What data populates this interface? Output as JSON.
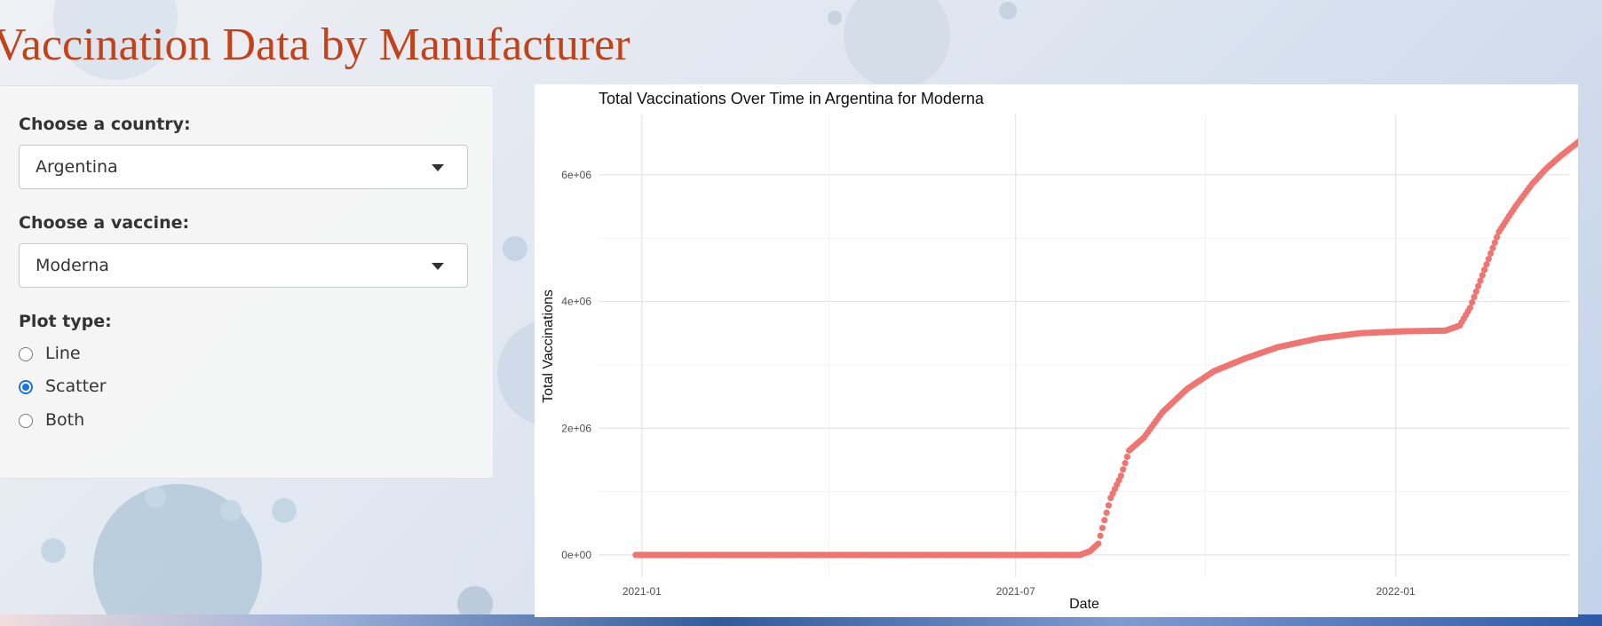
{
  "page": {
    "title": "Vaccination Data by Manufacturer"
  },
  "sidebar": {
    "country_label": "Choose a country:",
    "country_value": "Argentina",
    "vaccine_label": "Choose a vaccine:",
    "vaccine_value": "Moderna",
    "plot_type_label": "Plot type:",
    "plot_type_options": [
      {
        "label": "Line",
        "checked": false
      },
      {
        "label": "Scatter",
        "checked": true
      },
      {
        "label": "Both",
        "checked": false
      }
    ]
  },
  "colors": {
    "title": "#c2431a",
    "points": "#f07470",
    "radio_accent": "#1a73e8"
  },
  "chart_data": {
    "type": "scatter",
    "title": "Total Vaccinations Over Time in Argentina for Moderna",
    "xlabel": "Date",
    "ylabel": "Total Vaccinations",
    "xlim": [
      "2020-12-11",
      "2022-03-26"
    ],
    "ylim": [
      -350000,
      6950000
    ],
    "x_ticks": [
      "2021-01",
      "2021-07",
      "2022-01"
    ],
    "y_ticks": [
      {
        "value": 0,
        "label": "0e+00"
      },
      {
        "value": 2000000,
        "label": "2e+06"
      },
      {
        "value": 4000000,
        "label": "4e+06"
      },
      {
        "value": 6000000,
        "label": "6e+06"
      }
    ],
    "grid": true,
    "series_keypoints": [
      {
        "date": "2020-12-29",
        "value": 0
      },
      {
        "date": "2021-08-01",
        "value": 0
      },
      {
        "date": "2021-08-06",
        "value": 60000
      },
      {
        "date": "2021-08-10",
        "value": 180000
      },
      {
        "date": "2021-08-13",
        "value": 550000
      },
      {
        "date": "2021-08-16",
        "value": 900000
      },
      {
        "date": "2021-08-21",
        "value": 1250000
      },
      {
        "date": "2021-08-25",
        "value": 1650000
      },
      {
        "date": "2021-09-01",
        "value": 1850000
      },
      {
        "date": "2021-09-10",
        "value": 2250000
      },
      {
        "date": "2021-09-22",
        "value": 2620000
      },
      {
        "date": "2021-10-05",
        "value": 2900000
      },
      {
        "date": "2021-10-20",
        "value": 3100000
      },
      {
        "date": "2021-11-05",
        "value": 3280000
      },
      {
        "date": "2021-11-25",
        "value": 3420000
      },
      {
        "date": "2021-12-15",
        "value": 3500000
      },
      {
        "date": "2022-01-05",
        "value": 3530000
      },
      {
        "date": "2022-01-25",
        "value": 3540000
      },
      {
        "date": "2022-02-01",
        "value": 3620000
      },
      {
        "date": "2022-02-06",
        "value": 3900000
      },
      {
        "date": "2022-02-13",
        "value": 4500000
      },
      {
        "date": "2022-02-20",
        "value": 5100000
      },
      {
        "date": "2022-02-28",
        "value": 5500000
      },
      {
        "date": "2022-03-08",
        "value": 5850000
      },
      {
        "date": "2022-03-15",
        "value": 6100000
      },
      {
        "date": "2022-03-22",
        "value": 6300000
      },
      {
        "date": "2022-03-31",
        "value": 6530000
      }
    ]
  }
}
